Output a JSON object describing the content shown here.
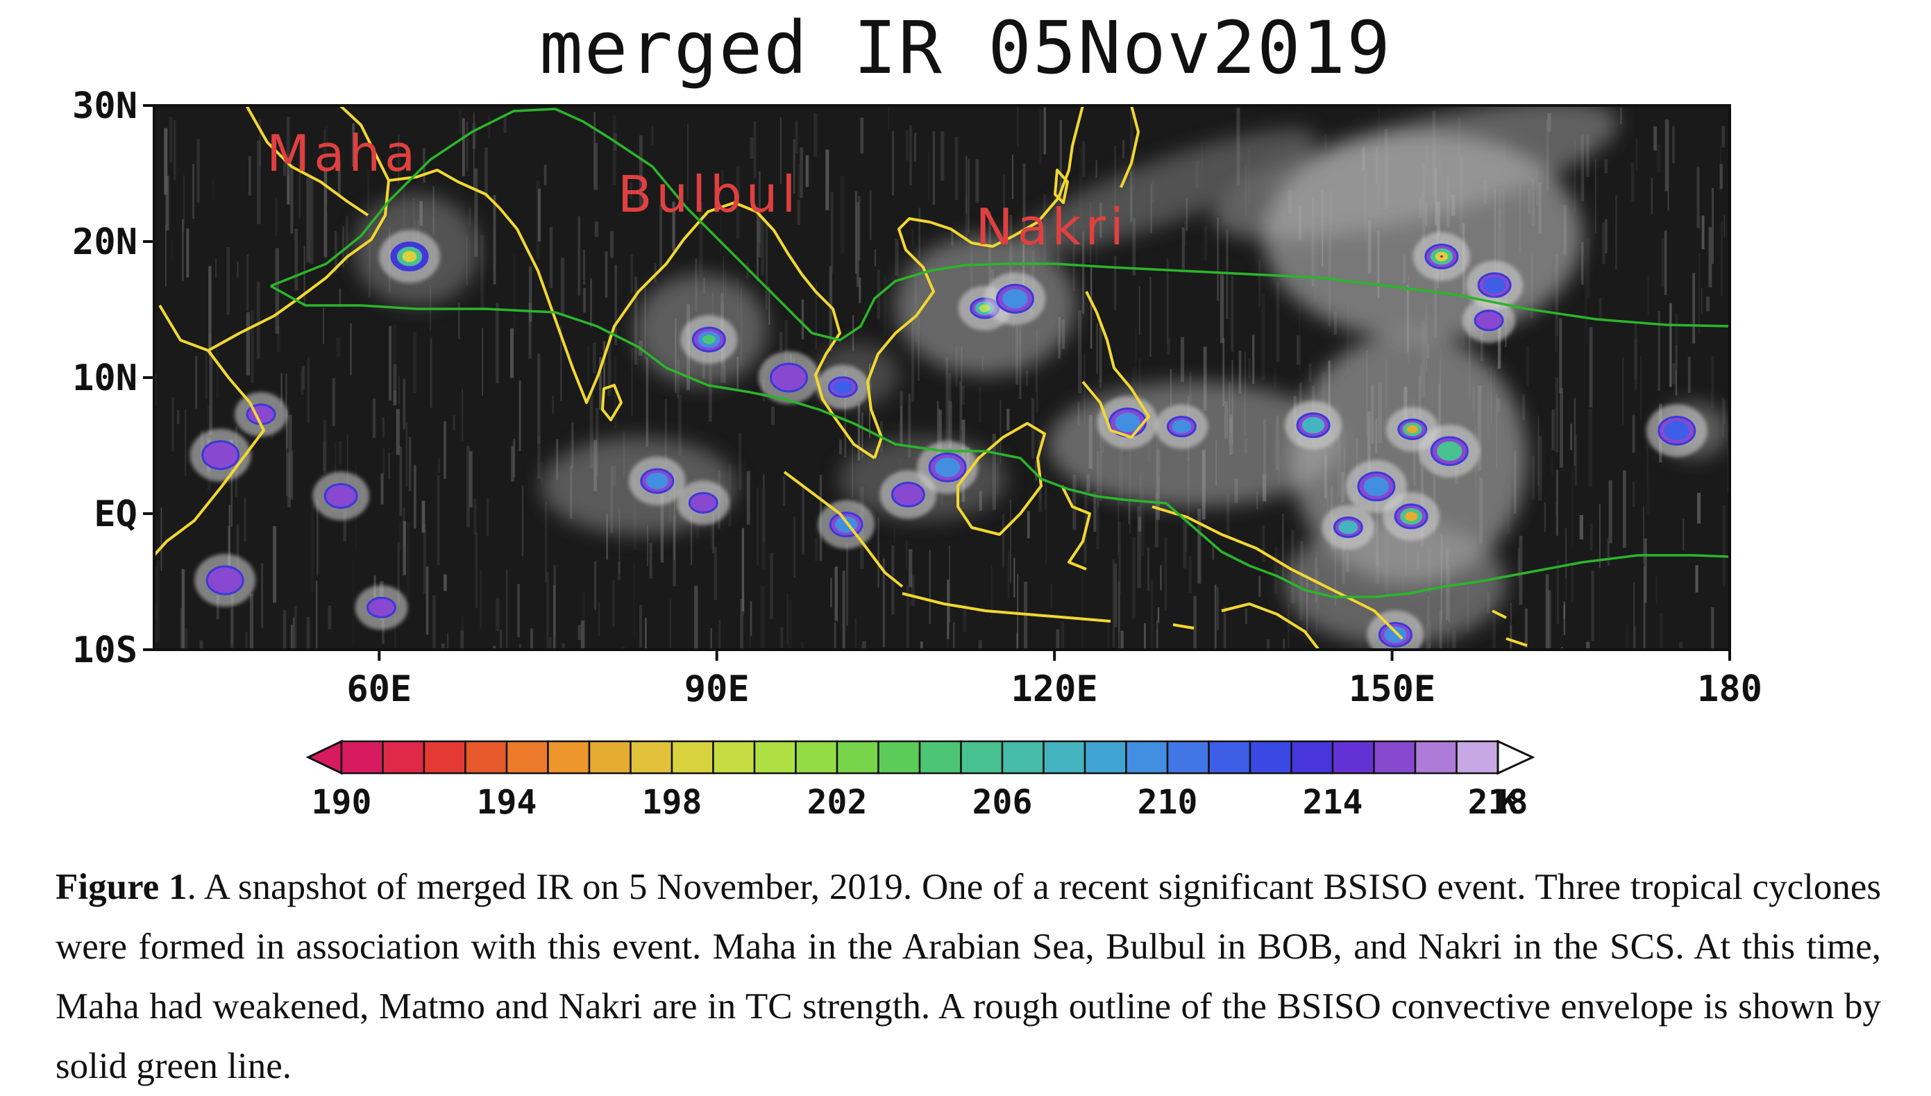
{
  "figure": {
    "title": "merged IR 05Nov2019",
    "caption_label": "Figure 1",
    "caption_text": ". A snapshot of merged IR on 5 November, 2019. One of a recent significant BSISO event. Three tropical cyclones were formed in association with this event. Maha in the Arabian Sea, Bulbul in BOB, and Nakri in the SCS. At this time, Maha had weakened, Matmo and Nakri are in TC strength. A rough outline of the BSISO convective envelope is shown by solid green line."
  },
  "map": {
    "lon_range": [
      40,
      180
    ],
    "lat_range": [
      -10,
      30
    ],
    "lon_ticks": [
      {
        "value": 60,
        "label": "60E"
      },
      {
        "value": 90,
        "label": "90E"
      },
      {
        "value": 120,
        "label": "120E"
      },
      {
        "value": 150,
        "label": "150E"
      },
      {
        "value": 180,
        "label": "180"
      }
    ],
    "lat_ticks": [
      {
        "value": 30,
        "label": "30N"
      },
      {
        "value": 20,
        "label": "20N"
      },
      {
        "value": 10,
        "label": "10N"
      },
      {
        "value": 0,
        "label": "EQ"
      },
      {
        "value": -10,
        "label": "10S"
      }
    ],
    "storms": [
      {
        "name": "Maha",
        "lon": 50,
        "lat": 25.2
      },
      {
        "name": "Bulbul",
        "lon": 81.2,
        "lat": 22.2
      },
      {
        "name": "Nakri",
        "lon": 113,
        "lat": 19.8
      }
    ],
    "colors": {
      "coast": "#f2d830",
      "envelope": "#2bb52b",
      "label": "#e04040"
    }
  },
  "colorbar": {
    "unit": "K",
    "tick_labels": [
      "190",
      "194",
      "198",
      "202",
      "206",
      "210",
      "214",
      "218"
    ],
    "colors": [
      "#d81b60",
      "#e02848",
      "#e43a34",
      "#e85a2c",
      "#ec7a2a",
      "#ec962c",
      "#e6ac32",
      "#e2c23a",
      "#d8d23e",
      "#c6dc42",
      "#aee044",
      "#94dc46",
      "#78d44a",
      "#5ccc58",
      "#4cc674",
      "#48c290",
      "#46bcaa",
      "#44b4c0",
      "#42a4d2",
      "#428ee0",
      "#4276e6",
      "#3e5ee8",
      "#3a48e4",
      "#4636dc",
      "#6432d4",
      "#8848d0",
      "#ae7cd8",
      "#c8a8e4"
    ]
  },
  "clouds": [
    {
      "lon": 62.7,
      "lat": 18.9,
      "levels": [
        214,
        206,
        198
      ]
    },
    {
      "lon": 89.3,
      "lat": 12.8,
      "levels": [
        216,
        210,
        204
      ]
    },
    {
      "lon": 113.8,
      "lat": 15.1,
      "levels": [
        216,
        208,
        200
      ]
    },
    {
      "lon": 116.5,
      "lat": 15.8,
      "levels": [
        216,
        210
      ]
    },
    {
      "lon": 154.4,
      "lat": 18.9,
      "levels": [
        216,
        206,
        198,
        190
      ]
    },
    {
      "lon": 131.3,
      "lat": 6.4,
      "levels": [
        216,
        210
      ]
    },
    {
      "lon": 126.5,
      "lat": 6.7,
      "levels": [
        216,
        210
      ]
    },
    {
      "lon": 143.0,
      "lat": 6.5,
      "levels": [
        216,
        208
      ]
    },
    {
      "lon": 151.8,
      "lat": 6.2,
      "levels": [
        216,
        206,
        196
      ]
    },
    {
      "lon": 155.1,
      "lat": 4.6,
      "levels": [
        216,
        206
      ]
    },
    {
      "lon": 151.7,
      "lat": -0.2,
      "levels": [
        216,
        206,
        196
      ]
    },
    {
      "lon": 146.1,
      "lat": -1.0,
      "levels": [
        216,
        208
      ]
    },
    {
      "lon": 148.6,
      "lat": 2.0,
      "levels": [
        216,
        210
      ]
    },
    {
      "lon": 84.7,
      "lat": 2.4,
      "levels": [
        216,
        210
      ]
    },
    {
      "lon": 88.8,
      "lat": 0.8,
      "levels": [
        216
      ]
    },
    {
      "lon": 110.5,
      "lat": 3.4,
      "levels": [
        216,
        210
      ]
    },
    {
      "lon": 107.0,
      "lat": 1.4,
      "levels": [
        216
      ]
    },
    {
      "lon": 101.2,
      "lat": 9.3,
      "levels": [
        216,
        212
      ]
    },
    {
      "lon": 96.4,
      "lat": 10.0,
      "levels": [
        216
      ]
    },
    {
      "lon": 159.1,
      "lat": 16.8,
      "levels": [
        216,
        212
      ]
    },
    {
      "lon": 158.6,
      "lat": 14.2,
      "levels": [
        216
      ]
    },
    {
      "lon": 175.3,
      "lat": 6.1,
      "levels": [
        216,
        212
      ]
    },
    {
      "lon": 101.5,
      "lat": -0.8,
      "levels": [
        216,
        210
      ]
    },
    {
      "lon": 49.5,
      "lat": 7.3,
      "levels": [
        216
      ]
    },
    {
      "lon": 45.9,
      "lat": 4.3,
      "levels": [
        216
      ]
    },
    {
      "lon": 56.6,
      "lat": 1.3,
      "levels": [
        216
      ]
    },
    {
      "lon": 60.2,
      "lat": -6.9,
      "levels": [
        216
      ]
    },
    {
      "lon": 46.3,
      "lat": -4.9,
      "levels": [
        216
      ]
    },
    {
      "lon": 150.3,
      "lat": -8.9,
      "levels": [
        216,
        210
      ]
    }
  ]
}
